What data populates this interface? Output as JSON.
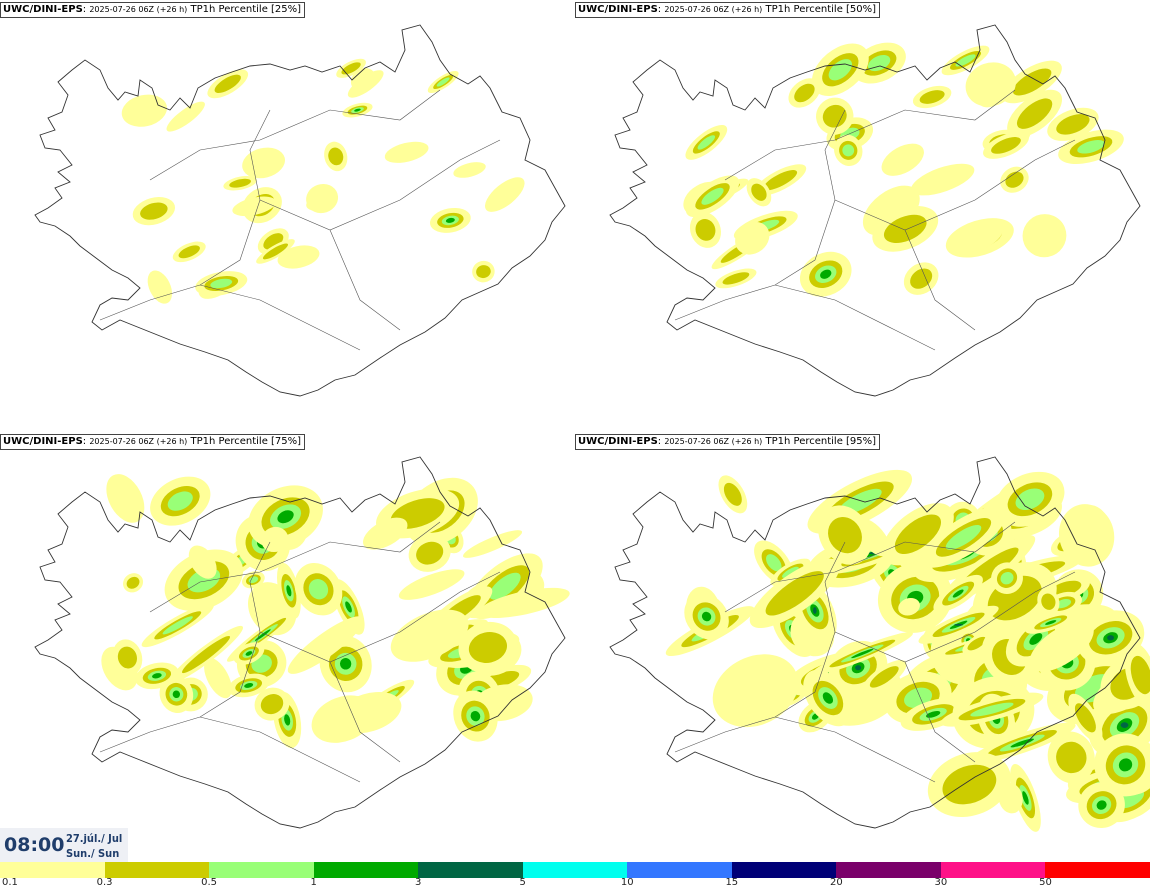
{
  "panels": [
    {
      "model": "UWC/DINI-EPS",
      "run": "2025-07-26 06Z (+26 h)",
      "field": "TP1h Percentile [25%]",
      "percentile": 25
    },
    {
      "model": "UWC/DINI-EPS",
      "run": "2025-07-26 06Z (+26 h)",
      "field": "TP1h Percentile [50%]",
      "percentile": 50
    },
    {
      "model": "UWC/DINI-EPS",
      "run": "2025-07-26 06Z (+26 h)",
      "field": "TP1h Percentile [75%]",
      "percentile": 75
    },
    {
      "model": "UWC/DINI-EPS",
      "run": "2025-07-26 06Z (+26 h)",
      "field": "TP1h Percentile [95%]",
      "percentile": 95
    }
  ],
  "valid_time": {
    "hour": "08:00",
    "date": "27.júl./ Jul",
    "day": "Sun./ Sun"
  },
  "colorbar": {
    "labels": [
      "0.1",
      "0.3",
      "0.5",
      "1",
      "3",
      "5",
      "10",
      "15",
      "20",
      "30",
      "50"
    ],
    "colors": [
      "#ffff99",
      "#cccc00",
      "#99ff77",
      "#00aa00",
      "#006644",
      "#00ffee",
      "#3377ff",
      "#000077",
      "#7a006a",
      "#ff1188",
      "#ff0000"
    ]
  }
}
